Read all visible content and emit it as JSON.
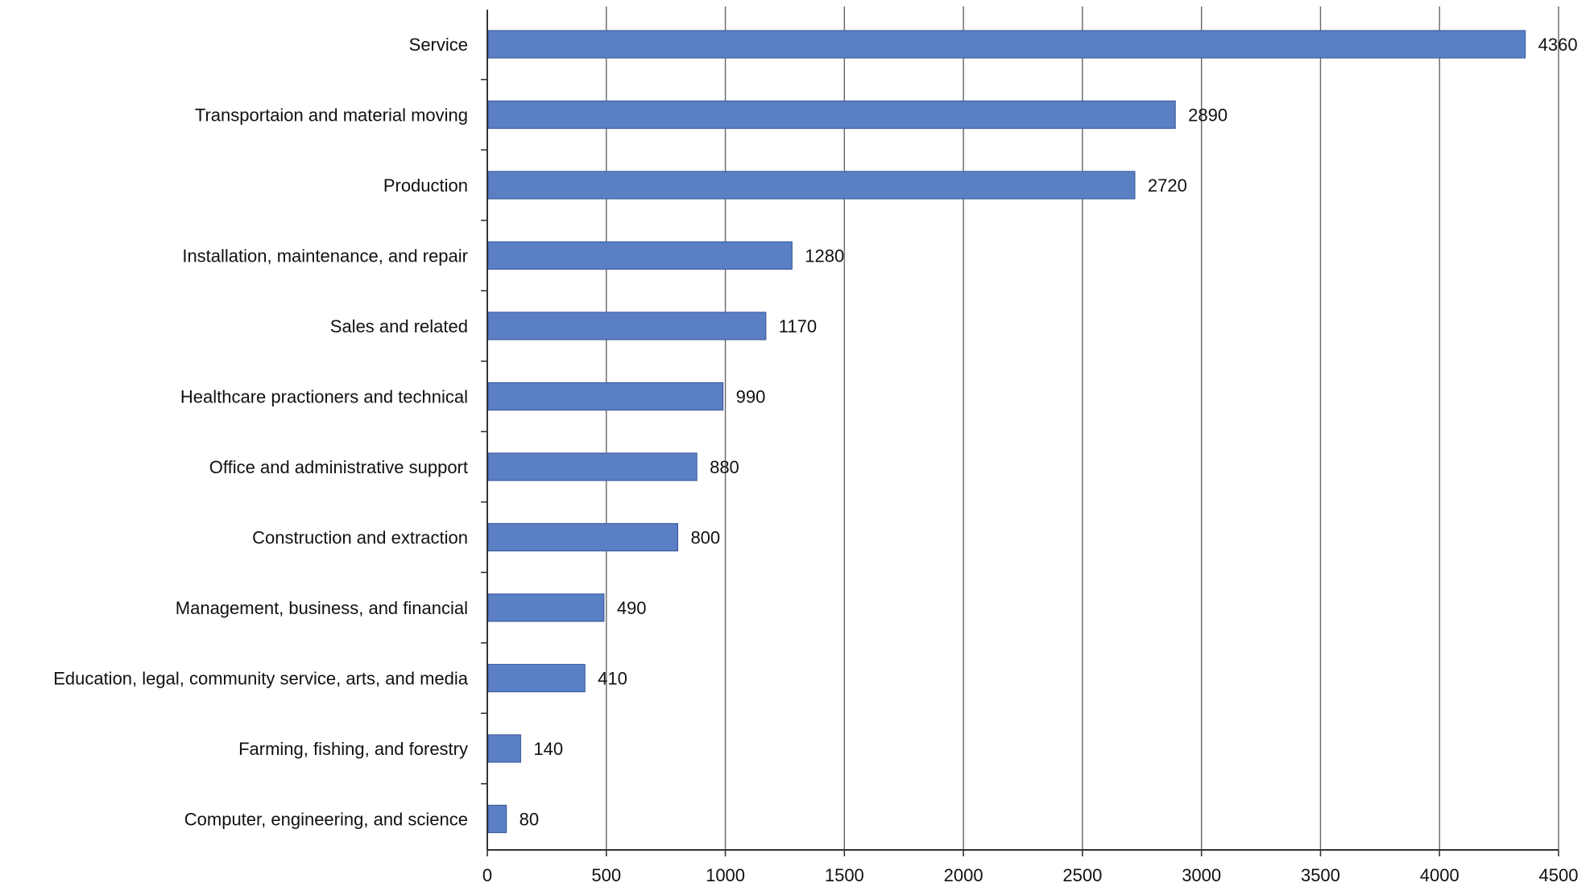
{
  "chart_data": {
    "type": "bar",
    "orientation": "horizontal",
    "categories": [
      "Service",
      "Transportaion and material moving",
      "Production",
      "Installation, maintenance, and repair",
      "Sales and related",
      "Healthcare practioners and technical",
      "Office and administrative support",
      "Construction and extraction",
      "Management, business, and financial",
      "Education, legal, community service, arts, and media",
      "Farming, fishing, and forestry",
      "Computer, engineering, and science"
    ],
    "values": [
      4360,
      2890,
      2720,
      1280,
      1170,
      990,
      880,
      800,
      490,
      410,
      140,
      80
    ],
    "data_labels": [
      "4360",
      "2890",
      "2720",
      "1280",
      "1170",
      "990",
      "880",
      "800",
      "490",
      "410",
      "140",
      "80"
    ],
    "x_ticks": [
      0,
      500,
      1000,
      1500,
      2000,
      2500,
      3000,
      3500,
      4000,
      4500
    ],
    "x_tick_labels": [
      "0",
      "500",
      "1000",
      "1500",
      "2000",
      "2500",
      "3000",
      "3500",
      "4000",
      "4500"
    ],
    "xlim": [
      0,
      4500
    ],
    "title": "",
    "xlabel": "",
    "ylabel": "",
    "grid": "vertical",
    "legend": "none",
    "colors": {
      "bar_fill": "#5b7fc4",
      "bar_stroke": "#3f5f9e",
      "grid": "#666666",
      "axis": "#333333",
      "text": "#111111"
    }
  }
}
